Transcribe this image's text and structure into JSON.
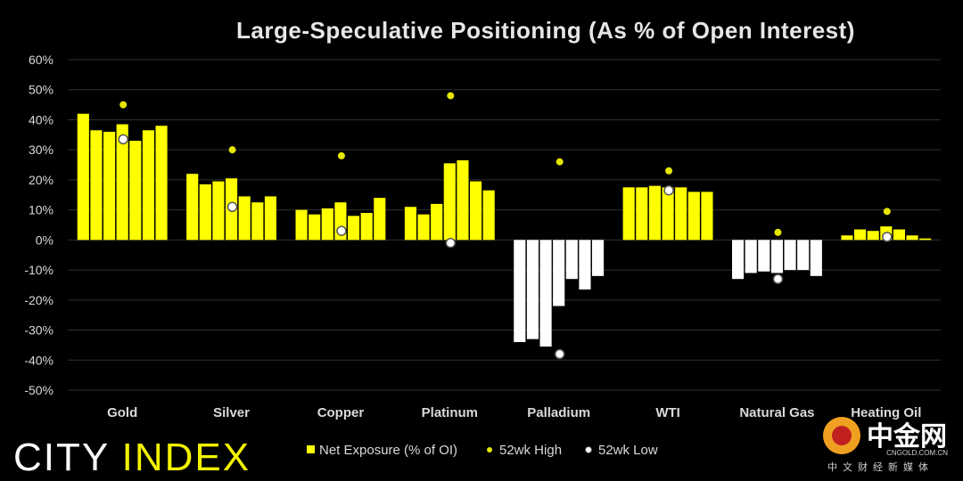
{
  "chart_data": {
    "type": "bar",
    "title": "Large-Speculative Positioning (As % of Open Interest)",
    "ylim": [
      -50,
      60
    ],
    "yticks": [
      "60%",
      "50%",
      "40%",
      "30%",
      "20%",
      "10%",
      "0%",
      "-10%",
      "-20%",
      "-30%",
      "-40%",
      "-50%"
    ],
    "ytick_values": [
      60,
      50,
      40,
      30,
      20,
      10,
      0,
      -10,
      -20,
      -30,
      -40,
      -50
    ],
    "grid": true,
    "legend_position": "bottom",
    "categories": [
      "Gold",
      "Silver",
      "Copper",
      "Platinum",
      "Palladium",
      "WTI",
      "Natural Gas",
      "Heating Oil"
    ],
    "series": [
      {
        "name": "Net Exposure (% of OI)",
        "values": [
          [
            42,
            36.5,
            36,
            38.5,
            33,
            36.5,
            38
          ],
          [
            22,
            18.5,
            19.5,
            20.5,
            14.5,
            12.5,
            14.5
          ],
          [
            10,
            8.5,
            10.5,
            12.5,
            8,
            9,
            14
          ],
          [
            11,
            8.5,
            12,
            25.5,
            26.5,
            19.5,
            16.5
          ],
          [
            -34,
            -33,
            -35.5,
            -22,
            -13,
            -16.5,
            -12
          ],
          [
            17.5,
            17.5,
            18,
            17.5,
            17.5,
            16,
            16
          ],
          [
            -13,
            -11,
            -10.5,
            -11,
            -10,
            -10,
            -12
          ],
          [
            1.5,
            3.5,
            3,
            4.5,
            3.5,
            1.5,
            0.5
          ]
        ]
      },
      {
        "name": "52wk High",
        "values": [
          45,
          30,
          28,
          48,
          26,
          23,
          2.5,
          9.5
        ]
      },
      {
        "name": "52wk Low",
        "values": [
          33.5,
          11,
          3,
          -1,
          -38,
          16.5,
          -13,
          1
        ]
      }
    ],
    "colors": {
      "positive_bar": "#ffff00",
      "negative_bar": "#ffffff",
      "high_marker": "#e6e600",
      "low_marker": "#ffffff",
      "grid": "#303030",
      "background": "#000000"
    }
  },
  "branding": {
    "city": "CITY ",
    "index": "INDEX"
  },
  "watermark": {
    "name": "中金网",
    "domain": "CNGOLD.COM.CN",
    "tagline": "中文财经新媒体"
  }
}
